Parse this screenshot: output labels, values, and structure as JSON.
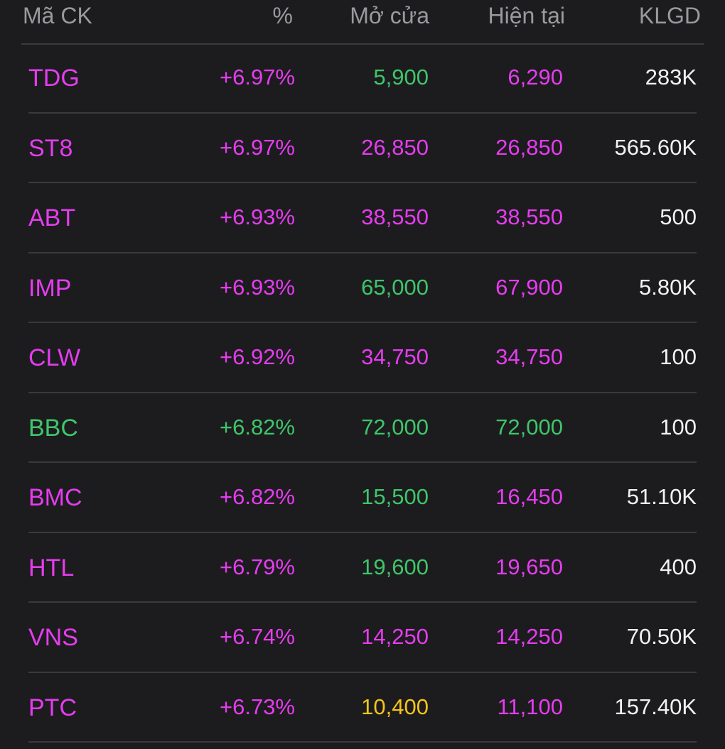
{
  "colors": {
    "ceiling": "#e63cf0",
    "up": "#3ec66a",
    "ref": "#f5c518",
    "volume": "#f2f2f2",
    "header": "#9a9a9e"
  },
  "header": {
    "symbol": "Mã CK",
    "percent": "%",
    "open": "Mở cửa",
    "current": "Hiện tại",
    "volume": "KLGD"
  },
  "rows": [
    {
      "symbol": "TDG",
      "symbol_color": "ceiling",
      "percent": "+6.97%",
      "percent_color": "ceiling",
      "open": "5,900",
      "open_color": "up",
      "current": "6,290",
      "current_color": "ceiling",
      "volume": "283K"
    },
    {
      "symbol": "ST8",
      "symbol_color": "ceiling",
      "percent": "+6.97%",
      "percent_color": "ceiling",
      "open": "26,850",
      "open_color": "ceiling",
      "current": "26,850",
      "current_color": "ceiling",
      "volume": "565.60K"
    },
    {
      "symbol": "ABT",
      "symbol_color": "ceiling",
      "percent": "+6.93%",
      "percent_color": "ceiling",
      "open": "38,550",
      "open_color": "ceiling",
      "current": "38,550",
      "current_color": "ceiling",
      "volume": "500"
    },
    {
      "symbol": "IMP",
      "symbol_color": "ceiling",
      "percent": "+6.93%",
      "percent_color": "ceiling",
      "open": "65,000",
      "open_color": "up",
      "current": "67,900",
      "current_color": "ceiling",
      "volume": "5.80K"
    },
    {
      "symbol": "CLW",
      "symbol_color": "ceiling",
      "percent": "+6.92%",
      "percent_color": "ceiling",
      "open": "34,750",
      "open_color": "ceiling",
      "current": "34,750",
      "current_color": "ceiling",
      "volume": "100"
    },
    {
      "symbol": "BBC",
      "symbol_color": "up",
      "percent": "+6.82%",
      "percent_color": "up",
      "open": "72,000",
      "open_color": "up",
      "current": "72,000",
      "current_color": "up",
      "volume": "100"
    },
    {
      "symbol": "BMC",
      "symbol_color": "ceiling",
      "percent": "+6.82%",
      "percent_color": "ceiling",
      "open": "15,500",
      "open_color": "up",
      "current": "16,450",
      "current_color": "ceiling",
      "volume": "51.10K"
    },
    {
      "symbol": "HTL",
      "symbol_color": "ceiling",
      "percent": "+6.79%",
      "percent_color": "ceiling",
      "open": "19,600",
      "open_color": "up",
      "current": "19,650",
      "current_color": "ceiling",
      "volume": "400"
    },
    {
      "symbol": "VNS",
      "symbol_color": "ceiling",
      "percent": "+6.74%",
      "percent_color": "ceiling",
      "open": "14,250",
      "open_color": "ceiling",
      "current": "14,250",
      "current_color": "ceiling",
      "volume": "70.50K"
    },
    {
      "symbol": "PTC",
      "symbol_color": "ceiling",
      "percent": "+6.73%",
      "percent_color": "ceiling",
      "open": "10,400",
      "open_color": "ref",
      "current": "11,100",
      "current_color": "ceiling",
      "volume": "157.40K"
    }
  ]
}
